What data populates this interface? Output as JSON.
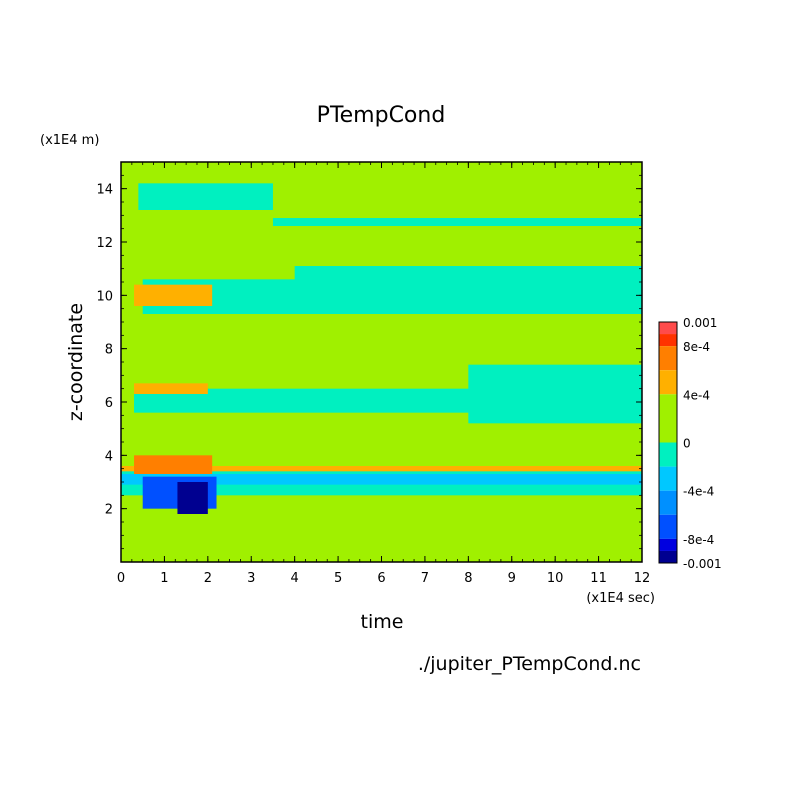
{
  "chart_data": {
    "type": "heatmap",
    "title": "PTempCond",
    "xlabel": "time",
    "ylabel": "z-coordinate",
    "x_scale_label": "(x1E4 sec)",
    "y_scale_label": "(x1E4 m)",
    "xlim": [
      0,
      12
    ],
    "ylim": [
      0,
      15
    ],
    "x_ticks": [
      "0",
      "1",
      "2",
      "3",
      "4",
      "5",
      "6",
      "7",
      "8",
      "9",
      "10",
      "11",
      "12"
    ],
    "y_ticks": [
      "2",
      "4",
      "6",
      "8",
      "10",
      "12",
      "14"
    ],
    "grid": false,
    "colorbar": {
      "labels": [
        {
          "text": "0.001",
          "value": 0.001
        },
        {
          "text": "8e-4",
          "value": 0.0008
        },
        {
          "text": "4e-4",
          "value": 0.0004
        },
        {
          "text": "0",
          "value": 0
        },
        {
          "text": "-4e-4",
          "value": -0.0004
        },
        {
          "text": "-8e-4",
          "value": -0.0008
        },
        {
          "text": "-0.001",
          "value": -0.001
        }
      ],
      "levels": [
        {
          "from": 0.0009,
          "to": 0.001,
          "color": "#ff4b4b"
        },
        {
          "from": 0.0008,
          "to": 0.0009,
          "color": "#ff3300"
        },
        {
          "from": 0.0006,
          "to": 0.0008,
          "color": "#ff7f00"
        },
        {
          "from": 0.0004,
          "to": 0.0006,
          "color": "#ffb000"
        },
        {
          "from": 0,
          "to": 0.0004,
          "color": "#a0f000"
        },
        {
          "from": -0.0002,
          "to": 0,
          "color": "#00f0c0"
        },
        {
          "from": -0.0004,
          "to": -0.0002,
          "color": "#00c8ff"
        },
        {
          "from": -0.0006,
          "to": -0.0004,
          "color": "#0090ff"
        },
        {
          "from": -0.0008,
          "to": -0.0006,
          "color": "#0050ff"
        },
        {
          "from": -0.0009,
          "to": -0.0008,
          "color": "#0000e0"
        },
        {
          "from": -0.001,
          "to": -0.0009,
          "color": "#000090"
        }
      ]
    },
    "background_color": "#a0f000",
    "bands": [
      {
        "t0": 0.4,
        "t1": 3.5,
        "z0": 13.2,
        "z1": 14.2,
        "value": -0.0001
      },
      {
        "t0": 3.5,
        "t1": 12,
        "z0": 12.6,
        "z1": 12.9,
        "value": -0.0001
      },
      {
        "t0": 0.5,
        "t1": 12,
        "z0": 9.3,
        "z1": 10.6,
        "value": -0.0001
      },
      {
        "t0": 4,
        "t1": 12,
        "z0": 9.8,
        "z1": 11.1,
        "value": -0.0001
      },
      {
        "t0": 0.3,
        "t1": 12,
        "z0": 5.6,
        "z1": 6.5,
        "value": -0.0001
      },
      {
        "t0": 8,
        "t1": 12,
        "z0": 5.2,
        "z1": 7.4,
        "value": -0.0001
      },
      {
        "t0": 0,
        "t1": 12,
        "z0": 2.5,
        "z1": 3.5,
        "value": -0.0001
      },
      {
        "t0": 0,
        "t1": 12,
        "z0": 2.9,
        "z1": 3.3,
        "value": -0.0003
      },
      {
        "t0": 0,
        "t1": 12,
        "z0": 3.4,
        "z1": 3.6,
        "value": 0.0005
      },
      {
        "t0": 0.3,
        "t1": 2.1,
        "z0": 3.3,
        "z1": 4.0,
        "value": 0.0007
      },
      {
        "t0": 0.3,
        "t1": 2.1,
        "z0": 9.6,
        "z1": 10.4,
        "value": 0.0005
      },
      {
        "t0": 0.3,
        "t1": 2.0,
        "z0": 6.3,
        "z1": 6.7,
        "value": 0.0005
      },
      {
        "t0": 0.5,
        "t1": 2.2,
        "z0": 2.0,
        "z1": 3.2,
        "value": -0.0007
      },
      {
        "t0": 1.3,
        "t1": 2.0,
        "z0": 1.8,
        "z1": 3.0,
        "value": -0.00095
      }
    ],
    "source_file": "./jupiter_PTempCond.nc"
  }
}
